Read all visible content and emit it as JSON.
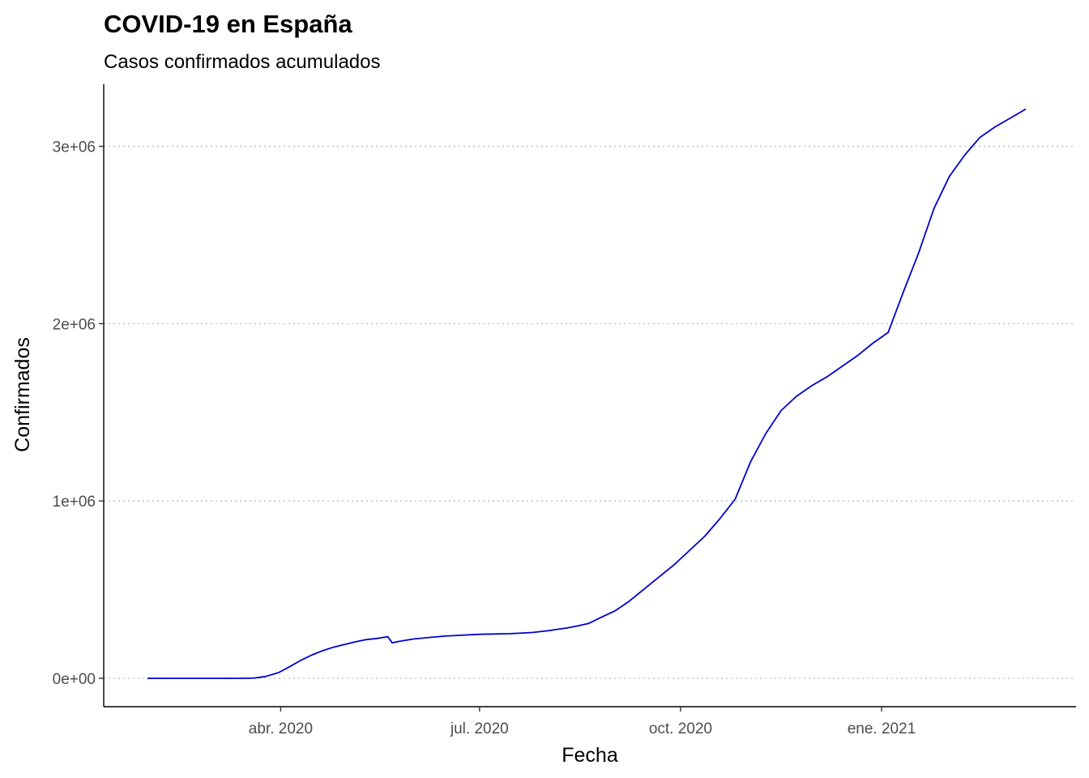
{
  "chart_data": {
    "type": "line",
    "title": "COVID-19 en España",
    "subtitle": "Casos confirmados acumulados",
    "xlabel": "Fecha",
    "ylabel": "Confirmados",
    "x_tick_labels": [
      "abr. 2020",
      "jul. 2020",
      "oct. 2020",
      "ene. 2021"
    ],
    "x_tick_dates": [
      "2020-04-01",
      "2020-07-01",
      "2020-10-01",
      "2021-01-01"
    ],
    "y_tick_labels": [
      "0e+00",
      "1e+06",
      "2e+06",
      "3e+06"
    ],
    "y_tick_values": [
      0,
      1000000,
      2000000,
      3000000
    ],
    "xlim": [
      "2020-01-11",
      "2021-03-31"
    ],
    "ylim": [
      -160000,
      3350000
    ],
    "grid": "horizontal-major-dotted",
    "series": [
      {
        "color": "#0000cd",
        "x": [
          "2020-01-31",
          "2020-02-15",
          "2020-02-25",
          "2020-03-05",
          "2020-03-10",
          "2020-03-15",
          "2020-03-20",
          "2020-03-25",
          "2020-03-31",
          "2020-04-05",
          "2020-04-10",
          "2020-04-15",
          "2020-04-20",
          "2020-04-25",
          "2020-04-30",
          "2020-05-05",
          "2020-05-10",
          "2020-05-15",
          "2020-05-20",
          "2020-05-22",
          "2020-05-25",
          "2020-06-01",
          "2020-06-15",
          "2020-07-01",
          "2020-07-15",
          "2020-07-25",
          "2020-08-01",
          "2020-08-10",
          "2020-08-15",
          "2020-08-20",
          "2020-08-25",
          "2020-09-01",
          "2020-09-07",
          "2020-09-14",
          "2020-09-21",
          "2020-09-28",
          "2020-10-05",
          "2020-10-12",
          "2020-10-19",
          "2020-10-26",
          "2020-11-02",
          "2020-11-09",
          "2020-11-16",
          "2020-11-23",
          "2020-11-30",
          "2020-12-07",
          "2020-12-14",
          "2020-12-21",
          "2020-12-28",
          "2021-01-04",
          "2021-01-11",
          "2021-01-18",
          "2021-01-25",
          "2021-02-01",
          "2021-02-08",
          "2021-02-15",
          "2021-02-22",
          "2021-03-01",
          "2021-03-08"
        ],
        "values": [
          0,
          0,
          0,
          0,
          0,
          0,
          2000,
          10000,
          32000,
          65000,
          100000,
          130000,
          155000,
          175000,
          190000,
          205000,
          218000,
          225000,
          235000,
          200000,
          208000,
          222000,
          238000,
          248000,
          252000,
          258000,
          268000,
          284000,
          296000,
          310000,
          340000,
          380000,
          430000,
          500000,
          570000,
          640000,
          720000,
          800000,
          900000,
          1010000,
          1220000,
          1380000,
          1510000,
          1590000,
          1650000,
          1700000,
          1760000,
          1820000,
          1890000,
          1950000,
          2180000,
          2400000,
          2650000,
          2830000,
          2950000,
          3050000,
          3110000,
          3160000,
          3210000
        ]
      }
    ]
  }
}
